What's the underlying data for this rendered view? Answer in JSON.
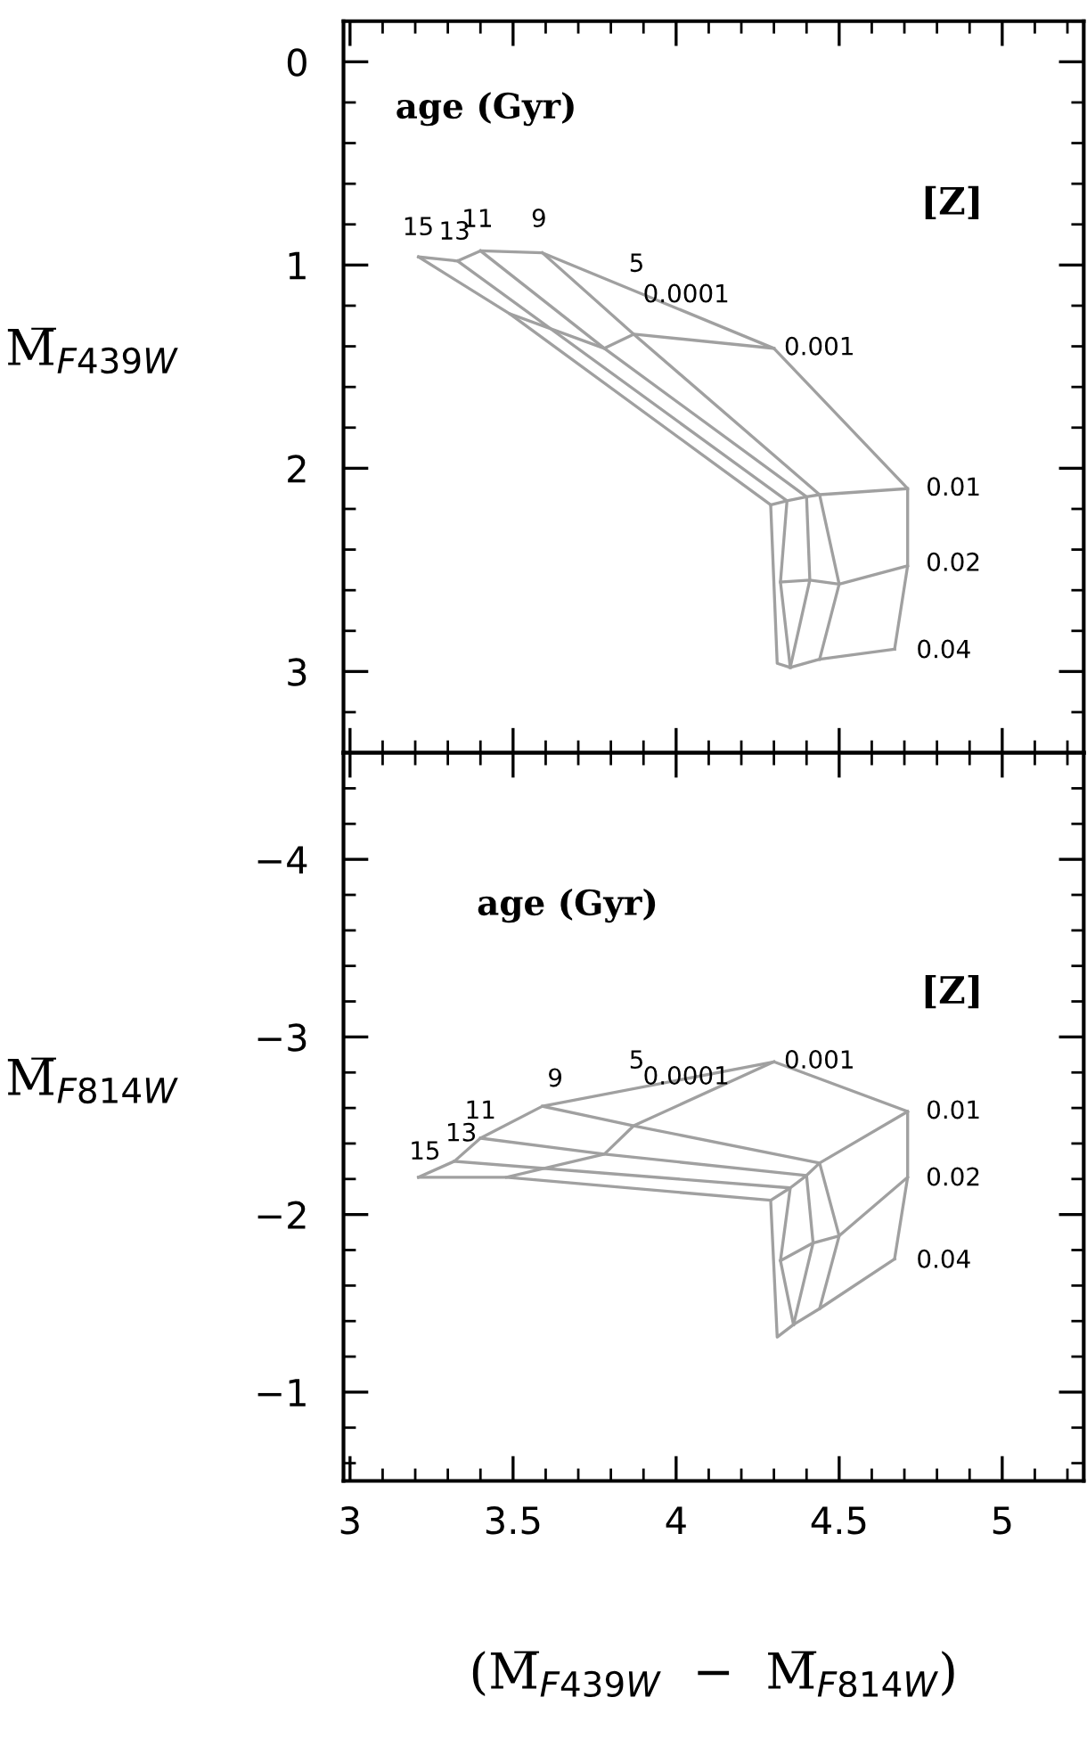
{
  "chart_data": [
    {
      "type": "line",
      "ylabel": "M̅$_{F439W}$",
      "xlim": [
        2.98,
        5.25
      ],
      "xticks": [
        3,
        3.5,
        4,
        4.5,
        5
      ],
      "ylim": [
        3.4,
        -0.2
      ],
      "yticks": [
        0,
        1,
        2,
        3
      ],
      "tick_labels": "y",
      "grid": false,
      "legend": false,
      "marker": "none",
      "line_style": "solid",
      "series": [
        {
          "color": "#a0a0a0",
          "x": [
            3.21,
            3.33,
            3.4,
            3.59,
            4.3,
            4.71,
            4.71,
            4.67
          ],
          "values": [
            0.96,
            0.98,
            0.93,
            0.94,
            1.41,
            2.1,
            2.48,
            2.89
          ]
        },
        {
          "color": "#a0a0a0",
          "x": [
            3.21,
            3.49,
            4.29,
            4.31,
            4.35,
            4.44,
            4.67
          ],
          "values": [
            0.96,
            1.24,
            2.18,
            2.96,
            2.98,
            2.94,
            2.89
          ]
        },
        {
          "color": "#a0a0a0",
          "x": [
            3.33,
            4.34,
            4.32,
            4.35
          ],
          "values": [
            0.98,
            2.16,
            2.56,
            2.98
          ]
        },
        {
          "color": "#a0a0a0",
          "x": [
            3.4,
            3.78,
            4.4,
            4.41,
            4.35
          ],
          "values": [
            0.93,
            1.41,
            2.14,
            2.55,
            2.98
          ]
        },
        {
          "color": "#a0a0a0",
          "x": [
            3.59,
            3.87,
            4.44,
            4.5,
            4.44
          ],
          "values": [
            0.94,
            1.34,
            2.13,
            2.57,
            2.94
          ]
        },
        {
          "color": "#a0a0a0",
          "x": [
            3.49,
            3.78,
            3.87,
            4.3
          ],
          "values": [
            1.24,
            1.41,
            1.34,
            1.41
          ]
        },
        {
          "color": "#a0a0a0",
          "x": [
            4.71,
            4.44,
            4.4,
            4.34,
            4.29
          ],
          "values": [
            2.1,
            2.13,
            2.14,
            2.16,
            2.18
          ]
        },
        {
          "color": "#a0a0a0",
          "x": [
            4.71,
            4.5,
            4.41,
            4.32
          ],
          "values": [
            2.48,
            2.57,
            2.55,
            2.56
          ]
        }
      ],
      "annotations": [
        "age (Gyr)",
        "[Z]",
        "15",
        "13",
        "11",
        "9",
        "5",
        "0.0001",
        "0.001",
        "0.01",
        "0.02",
        "0.04"
      ]
    },
    {
      "type": "line",
      "ylabel": "M̅$_{F814W}$",
      "xlabel": "(M̅$_{F439W}$  −  M̅$_{F814W}$)",
      "xlim": [
        2.98,
        5.25
      ],
      "xticks": [
        3,
        3.5,
        4,
        4.5,
        5
      ],
      "ylim": [
        -0.5,
        -4.6
      ],
      "yticks": [
        {
          "value": -4,
          "label": "−4"
        },
        {
          "value": -3,
          "label": "−3"
        },
        {
          "value": -2,
          "label": "−2"
        },
        {
          "value": -1,
          "label": "−1"
        }
      ],
      "grid": false,
      "legend": false,
      "marker": "none",
      "line_style": "solid",
      "series": [
        {
          "color": "#a0a0a0",
          "x": [
            3.21,
            3.32,
            3.4,
            3.59,
            4.3,
            4.71,
            4.71,
            4.67
          ],
          "values": [
            -2.21,
            -2.3,
            -2.43,
            -2.61,
            -2.86,
            -2.58,
            -2.21,
            -1.75
          ]
        },
        {
          "color": "#a0a0a0",
          "x": [
            3.21,
            3.48,
            4.29,
            4.31,
            4.36,
            4.44,
            4.67
          ],
          "values": [
            -2.21,
            -2.21,
            -2.08,
            -1.31,
            -1.38,
            -1.47,
            -1.75
          ]
        },
        {
          "color": "#a0a0a0",
          "x": [
            3.32,
            4.35,
            4.32,
            4.36
          ],
          "values": [
            -2.3,
            -2.15,
            -1.74,
            -1.38
          ]
        },
        {
          "color": "#a0a0a0",
          "x": [
            3.4,
            3.78,
            4.4,
            4.42,
            4.36
          ],
          "values": [
            -2.43,
            -2.34,
            -2.22,
            -1.84,
            -1.38
          ]
        },
        {
          "color": "#a0a0a0",
          "x": [
            3.59,
            3.87,
            4.44,
            4.5,
            4.44
          ],
          "values": [
            -2.61,
            -2.5,
            -2.29,
            -1.88,
            -1.47
          ]
        },
        {
          "color": "#a0a0a0",
          "x": [
            3.48,
            3.78,
            3.87,
            4.3
          ],
          "values": [
            -2.21,
            -2.34,
            -2.5,
            -2.86
          ]
        },
        {
          "color": "#a0a0a0",
          "x": [
            4.71,
            4.44,
            4.4,
            4.35,
            4.29
          ],
          "values": [
            -2.58,
            -2.29,
            -2.22,
            -2.15,
            -2.08
          ]
        },
        {
          "color": "#a0a0a0",
          "x": [
            4.71,
            4.5,
            4.42,
            4.32
          ],
          "values": [
            -2.21,
            -1.88,
            -1.84,
            -1.74
          ]
        }
      ],
      "annotations": [
        "age (Gyr)",
        "[Z]",
        "15",
        "13",
        "11",
        "9",
        "5",
        "0.0001",
        "0.001",
        "0.01",
        "0.02",
        "0.04"
      ]
    }
  ]
}
